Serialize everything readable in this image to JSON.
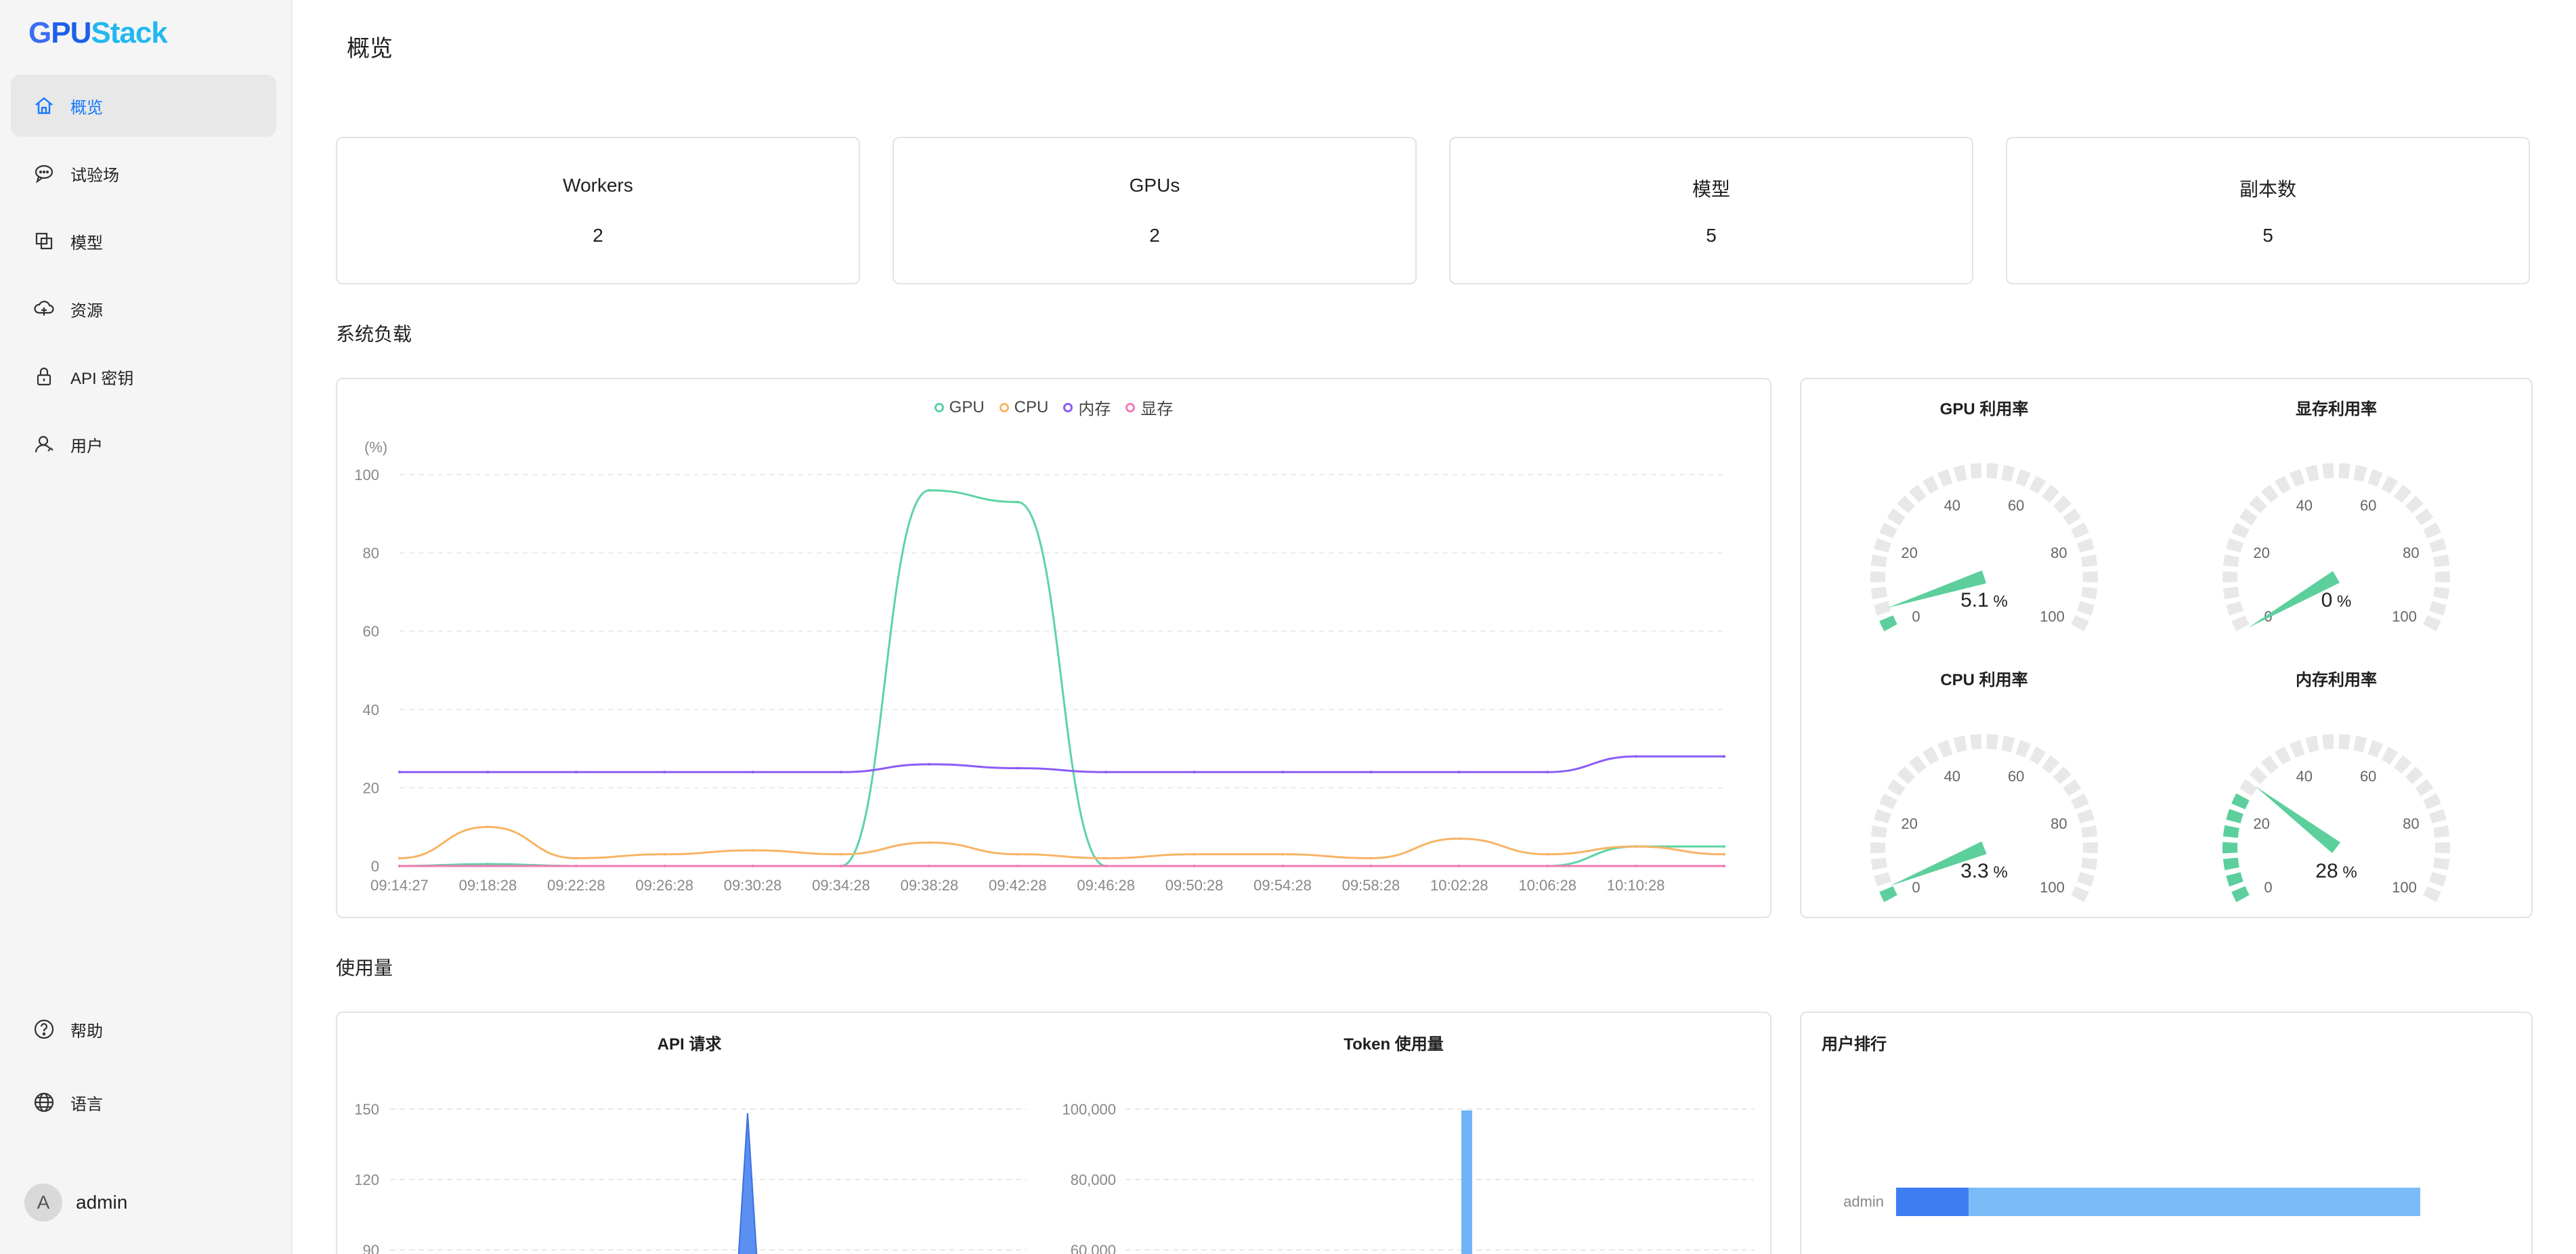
{
  "app": {
    "logo_g": "G",
    "logo_pu": "PU",
    "logo_stack": "Stack"
  },
  "sidebar": {
    "items": [
      {
        "label": "概览",
        "icon": "home-icon",
        "active": true
      },
      {
        "label": "试验场",
        "icon": "chat-icon",
        "active": false
      },
      {
        "label": "模型",
        "icon": "copy-icon",
        "active": false
      },
      {
        "label": "资源",
        "icon": "cloud-icon",
        "active": false
      },
      {
        "label": "API 密钥",
        "icon": "lock-icon",
        "active": false
      },
      {
        "label": "用户",
        "icon": "user-icon",
        "active": false
      }
    ],
    "help_label": "帮助",
    "language_label": "语言",
    "user": {
      "initial": "A",
      "name": "admin"
    }
  },
  "page": {
    "title": "概览"
  },
  "stats": [
    {
      "label": "Workers",
      "value": "2"
    },
    {
      "label": "GPUs",
      "value": "2"
    },
    {
      "label": "模型",
      "value": "5"
    },
    {
      "label": "副本数",
      "value": "5"
    }
  ],
  "system_load": {
    "section_title": "系统负载",
    "unit_label": "(%)",
    "legend": [
      {
        "name": "GPU",
        "color": "#5ed3a4"
      },
      {
        "name": "CPU",
        "color": "#f7b465"
      },
      {
        "name": "内存",
        "color": "#8b5cf6"
      },
      {
        "name": "显存",
        "color": "#f27ab8"
      }
    ],
    "gauges": [
      {
        "title": "GPU 利用率",
        "value": 5.1,
        "display": "5.1"
      },
      {
        "title": "显存利用率",
        "value": 0,
        "display": "0"
      },
      {
        "title": "CPU 利用率",
        "value": 3.3,
        "display": "3.3"
      },
      {
        "title": "内存利用率",
        "value": 28,
        "display": "28"
      }
    ],
    "gauge_unit": "%",
    "gauge_ticks": [
      "0",
      "20",
      "40",
      "60",
      "80",
      "100"
    ]
  },
  "usage": {
    "section_title": "使用量",
    "api_title": "API 请求",
    "api_ticks": [
      "150",
      "120",
      "90"
    ],
    "token_title": "Token 使用量",
    "token_ticks": [
      "100,000",
      "80,000",
      "60,000"
    ],
    "ranking_title": "用户排行",
    "ranking_user": "admin",
    "ranking_bar": {
      "first_fraction": 0.138,
      "second_fraction": 0.862,
      "color1": "#3d7ef5",
      "color2": "#7bbcf8"
    }
  },
  "chart_data": {
    "type": "line",
    "title": "",
    "xlabel": "",
    "ylabel": "(%)",
    "ylim": [
      0,
      100
    ],
    "yticks": [
      0,
      20,
      40,
      60,
      80,
      100
    ],
    "x": [
      "09:14:27",
      "09:18:28",
      "09:22:28",
      "09:26:28",
      "09:30:28",
      "09:34:28",
      "09:38:28",
      "09:42:28",
      "09:46:28",
      "09:50:28",
      "09:54:28",
      "09:58:28",
      "10:02:28",
      "10:06:28",
      "10:10:28",
      "10:13:00"
    ],
    "xtick_labels": [
      "09:14:27",
      "09:18:28",
      "09:22:28",
      "09:26:28",
      "09:30:28",
      "09:34:28",
      "09:38:28",
      "09:42:28",
      "09:46:28",
      "09:50:28",
      "09:54:28",
      "09:58:28",
      "10:02:28",
      "10:06:28",
      "10:10:28"
    ],
    "grid": true,
    "legend_position": "top-center",
    "series": [
      {
        "name": "GPU",
        "color": "#5ed3a4",
        "values": [
          0,
          0.5,
          0,
          0,
          0,
          0,
          96,
          93,
          0,
          0,
          0,
          0,
          0,
          0,
          5,
          5
        ]
      },
      {
        "name": "CPU",
        "color": "#f7b465",
        "values": [
          2,
          10,
          2,
          3,
          4,
          3,
          6,
          3,
          2,
          3,
          3,
          2,
          7,
          3,
          5,
          3
        ]
      },
      {
        "name": "内存",
        "color": "#8b5cf6",
        "values": [
          24,
          24,
          24,
          24,
          24,
          24,
          26,
          25,
          24,
          24,
          24,
          24,
          24,
          24,
          28,
          28
        ]
      },
      {
        "name": "显存",
        "color": "#f27ab8",
        "values": [
          0,
          0,
          0,
          0,
          0,
          0,
          0,
          0,
          0,
          0,
          0,
          0,
          0,
          0,
          0,
          0
        ]
      }
    ]
  }
}
